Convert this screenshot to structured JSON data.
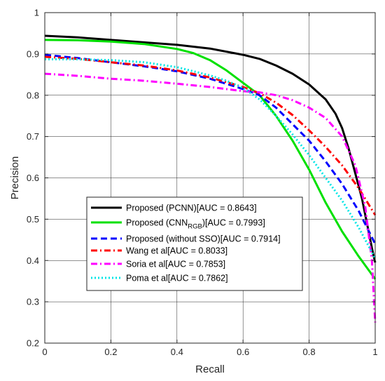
{
  "chart_data": {
    "type": "line",
    "title": "",
    "xlabel": "Recall",
    "ylabel": "Precision",
    "xlim": [
      0,
      1
    ],
    "ylim": [
      0.2,
      1
    ],
    "xticks": [
      "0",
      "0.2",
      "0.4",
      "0.6",
      "0.8",
      "1"
    ],
    "yticks": [
      "0.2",
      "0.3",
      "0.4",
      "0.5",
      "0.6",
      "0.7",
      "0.8",
      "0.9",
      "1"
    ],
    "grid": true,
    "legend_position": "center",
    "series": [
      {
        "name": "Proposed (PCNN)[AUC = 0.8643]",
        "color": "#000000",
        "dash": "solid",
        "points": [
          [
            0,
            0.944
          ],
          [
            0.1,
            0.94
          ],
          [
            0.2,
            0.934
          ],
          [
            0.3,
            0.928
          ],
          [
            0.4,
            0.922
          ],
          [
            0.5,
            0.913
          ],
          [
            0.6,
            0.898
          ],
          [
            0.65,
            0.888
          ],
          [
            0.7,
            0.872
          ],
          [
            0.75,
            0.852
          ],
          [
            0.8,
            0.826
          ],
          [
            0.85,
            0.79
          ],
          [
            0.88,
            0.755
          ],
          [
            0.9,
            0.72
          ],
          [
            0.92,
            0.67
          ],
          [
            0.94,
            0.61
          ],
          [
            0.96,
            0.55
          ],
          [
            0.98,
            0.47
          ],
          [
            0.99,
            0.43
          ],
          [
            1,
            0.395
          ]
        ]
      },
      {
        "name": "Proposed (CNN_RGB)[AUC = 0.7993]",
        "color": "#00e000",
        "dash": "solid",
        "points": [
          [
            0,
            0.934
          ],
          [
            0.1,
            0.933
          ],
          [
            0.2,
            0.93
          ],
          [
            0.3,
            0.924
          ],
          [
            0.4,
            0.912
          ],
          [
            0.45,
            0.902
          ],
          [
            0.5,
            0.885
          ],
          [
            0.55,
            0.86
          ],
          [
            0.6,
            0.83
          ],
          [
            0.65,
            0.8
          ],
          [
            0.7,
            0.75
          ],
          [
            0.75,
            0.69
          ],
          [
            0.8,
            0.62
          ],
          [
            0.85,
            0.54
          ],
          [
            0.9,
            0.47
          ],
          [
            0.95,
            0.41
          ],
          [
            1,
            0.355
          ]
        ]
      },
      {
        "name": "Proposed (without SSO)[AUC = 0.7914]",
        "color": "#0000ff",
        "dash": "dash",
        "points": [
          [
            0,
            0.898
          ],
          [
            0.1,
            0.89
          ],
          [
            0.2,
            0.88
          ],
          [
            0.3,
            0.87
          ],
          [
            0.4,
            0.858
          ],
          [
            0.5,
            0.84
          ],
          [
            0.6,
            0.815
          ],
          [
            0.65,
            0.8
          ],
          [
            0.7,
            0.77
          ],
          [
            0.75,
            0.73
          ],
          [
            0.8,
            0.69
          ],
          [
            0.85,
            0.64
          ],
          [
            0.9,
            0.585
          ],
          [
            0.95,
            0.52
          ],
          [
            1,
            0.44
          ]
        ]
      },
      {
        "name": "Wang et al[AUC = 0.8033]",
        "color": "#ff0000",
        "dash": "dashdot",
        "points": [
          [
            0,
            0.893
          ],
          [
            0.1,
            0.888
          ],
          [
            0.2,
            0.88
          ],
          [
            0.3,
            0.872
          ],
          [
            0.4,
            0.86
          ],
          [
            0.5,
            0.843
          ],
          [
            0.6,
            0.82
          ],
          [
            0.65,
            0.805
          ],
          [
            0.7,
            0.782
          ],
          [
            0.75,
            0.752
          ],
          [
            0.8,
            0.715
          ],
          [
            0.85,
            0.675
          ],
          [
            0.9,
            0.63
          ],
          [
            0.95,
            0.575
          ],
          [
            1,
            0.51
          ]
        ]
      },
      {
        "name": "Soria et al[AUC = 0.7853]",
        "color": "#ff00ff",
        "dash": "dashdot",
        "points": [
          [
            0,
            0.852
          ],
          [
            0.1,
            0.847
          ],
          [
            0.2,
            0.84
          ],
          [
            0.3,
            0.835
          ],
          [
            0.4,
            0.828
          ],
          [
            0.5,
            0.82
          ],
          [
            0.6,
            0.81
          ],
          [
            0.65,
            0.807
          ],
          [
            0.7,
            0.8
          ],
          [
            0.75,
            0.788
          ],
          [
            0.8,
            0.77
          ],
          [
            0.85,
            0.745
          ],
          [
            0.9,
            0.7
          ],
          [
            0.94,
            0.63
          ],
          [
            0.97,
            0.53
          ],
          [
            0.99,
            0.4
          ],
          [
            1,
            0.25
          ]
        ]
      },
      {
        "name": "Poma et al[AUC = 0.7862]",
        "color": "#00e5e5",
        "dash": "dot",
        "points": [
          [
            0,
            0.887
          ],
          [
            0.1,
            0.887
          ],
          [
            0.2,
            0.885
          ],
          [
            0.3,
            0.88
          ],
          [
            0.4,
            0.868
          ],
          [
            0.5,
            0.848
          ],
          [
            0.55,
            0.835
          ],
          [
            0.6,
            0.818
          ],
          [
            0.65,
            0.79
          ],
          [
            0.7,
            0.75
          ],
          [
            0.75,
            0.705
          ],
          [
            0.8,
            0.655
          ],
          [
            0.85,
            0.6
          ],
          [
            0.9,
            0.545
          ],
          [
            0.95,
            0.48
          ],
          [
            1,
            0.405
          ]
        ]
      }
    ],
    "legend_labels": [
      {
        "text": "Proposed (PCNN)[AUC = 0.8643]"
      },
      {
        "pre": "Proposed (CNN",
        "sub": "RGB",
        "post": ")[AUC = 0.7993]"
      },
      {
        "text": "Proposed (without SSO)[AUC = 0.7914]"
      },
      {
        "text": "Wang et al[AUC = 0.8033]"
      },
      {
        "text": "Soria et al[AUC = 0.7853]"
      },
      {
        "text": "Poma et al[AUC = 0.7862]"
      }
    ]
  }
}
